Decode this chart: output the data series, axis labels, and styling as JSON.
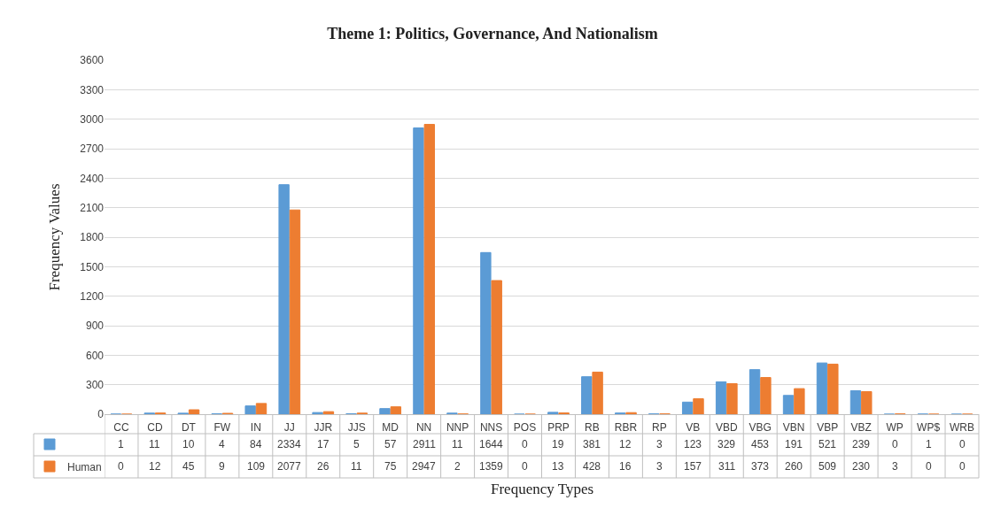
{
  "chart_data": {
    "type": "bar",
    "title": "Theme 1: Politics, Governance, And Nationalism",
    "xlabel": "Frequency Types",
    "ylabel": "Frequency Values",
    "categories": [
      "CC",
      "CD",
      "DT",
      "FW",
      "IN",
      "JJ",
      "JJR",
      "JJS",
      "MD",
      "NN",
      "NNP",
      "NNS",
      "POS",
      "PRP",
      "RB",
      "RBR",
      "RP",
      "VB",
      "VBD",
      "VBG",
      "VBN",
      "VBP",
      "VBZ",
      "WP",
      "WP$",
      "WRB"
    ],
    "series": [
      {
        "color": "#5b9bd5",
        "values": [
          1,
          11,
          10,
          4,
          84,
          2334,
          17,
          5,
          57,
          2911,
          11,
          1644,
          0,
          19,
          381,
          12,
          3,
          123,
          329,
          453,
          191,
          521,
          239,
          0,
          1,
          0
        ]
      },
      {
        "name": "Human",
        "color": "#ed7d31",
        "values": [
          0,
          12,
          45,
          9,
          109,
          2077,
          26,
          11,
          75,
          2947,
          2,
          1359,
          0,
          13,
          428,
          16,
          3,
          157,
          311,
          373,
          260,
          509,
          230,
          3,
          0,
          0
        ]
      }
    ],
    "ylim": [
      0,
      3600
    ],
    "yticks": [
      0,
      300,
      600,
      900,
      1200,
      1500,
      1800,
      2100,
      2400,
      2700,
      3000,
      3300,
      3600
    ],
    "grid": "y",
    "data_labels": true,
    "legend": "bottom left"
  }
}
